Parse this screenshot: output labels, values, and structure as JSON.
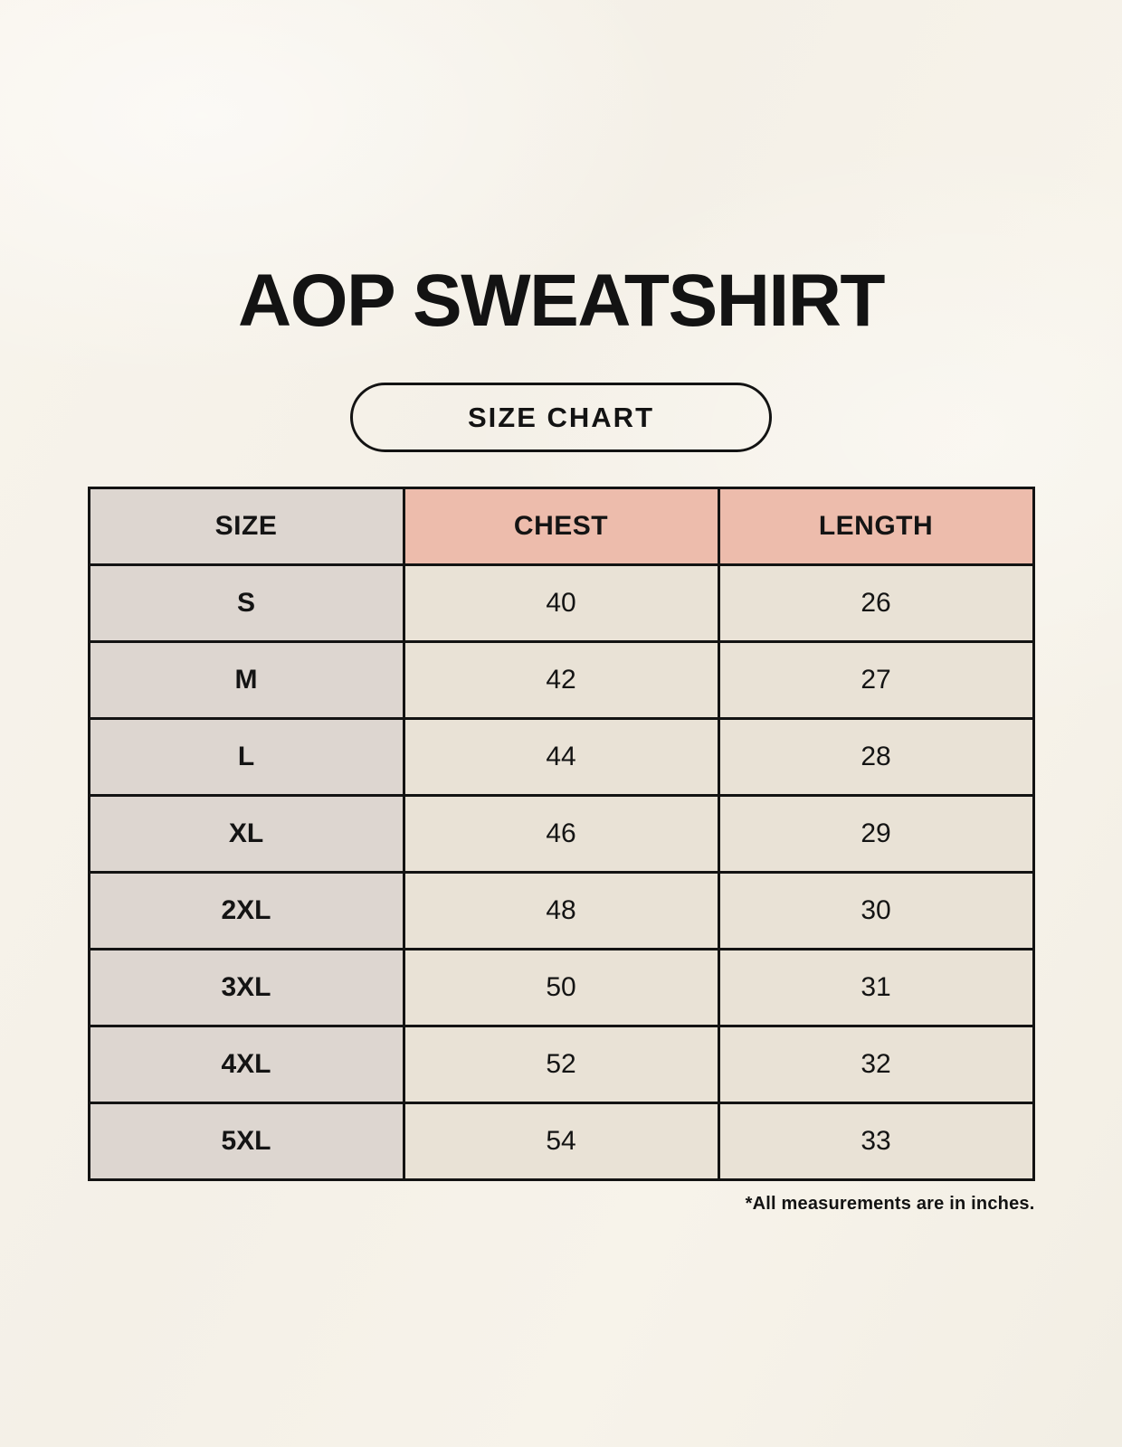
{
  "page": {
    "title": "AOP SWEATSHIRT",
    "badge_label": "SIZE CHART",
    "footnote": "*All measurements are in inches."
  },
  "colors": {
    "background": "#F6F2E9",
    "size_column_bg": "#DDD6D0",
    "accent_header_bg": "#EDBCAC",
    "data_cell_bg": "#E9E2D6",
    "border": "#131313",
    "text": "#131313"
  },
  "chart_data": {
    "type": "table",
    "title": "AOP SWEATSHIRT",
    "columns": [
      "SIZE",
      "CHEST",
      "LENGTH"
    ],
    "units": "inches",
    "rows": [
      [
        "S",
        40,
        26
      ],
      [
        "M",
        42,
        27
      ],
      [
        "L",
        44,
        28
      ],
      [
        "XL",
        46,
        29
      ],
      [
        "2XL",
        48,
        30
      ],
      [
        "3XL",
        50,
        31
      ],
      [
        "4XL",
        52,
        32
      ],
      [
        "5XL",
        54,
        33
      ]
    ]
  }
}
